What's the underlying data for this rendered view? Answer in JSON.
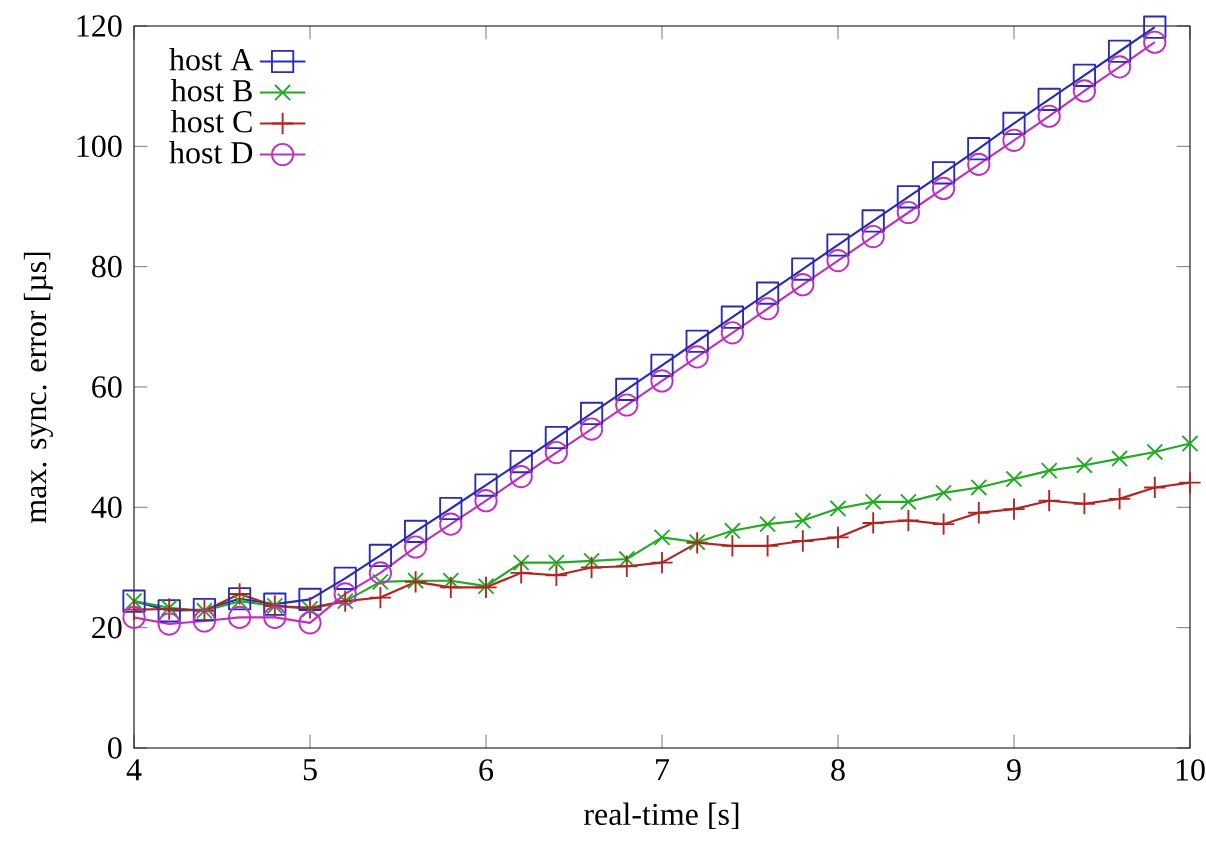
{
  "chart_data": {
    "type": "line",
    "xlabel": "real-time [s]",
    "ylabel": "max. sync. error [µs]",
    "xlim": [
      4,
      10
    ],
    "ylim": [
      0,
      120
    ],
    "xticks": [
      4,
      5,
      6,
      7,
      8,
      9,
      10
    ],
    "yticks": [
      0,
      20,
      40,
      60,
      80,
      100,
      120
    ],
    "grid": false,
    "legend": "top left",
    "line_style": "solid",
    "series": [
      {
        "name": "host A",
        "color": "#2a2ab8",
        "marker": "square",
        "x": [
          4.0,
          4.2,
          4.4,
          4.6,
          4.8,
          5.0,
          5.2,
          5.4,
          5.6,
          5.8,
          6.0,
          6.2,
          6.4,
          6.6,
          6.8,
          7.0,
          7.2,
          7.4,
          7.6,
          7.8,
          8.0,
          8.2,
          8.4,
          8.6,
          8.8,
          9.0,
          9.2,
          9.4,
          9.6,
          9.8
        ],
        "values": [
          24.4,
          22.8,
          23,
          24.8,
          23.9,
          24.7,
          28.2,
          32,
          36,
          39.8,
          43.7,
          47.6,
          51.6,
          55.6,
          59.6,
          63.6,
          67.6,
          71.6,
          75.6,
          79.6,
          83.6,
          87.6,
          91.6,
          95.6,
          99.6,
          103.8,
          107.8,
          111.8,
          115.8,
          119.8
        ]
      },
      {
        "name": "host B",
        "color": "#22aa22",
        "marker": "cross",
        "x": [
          4.0,
          4.2,
          4.4,
          4.6,
          4.8,
          5.0,
          5.2,
          5.4,
          5.6,
          5.8,
          6.0,
          6.2,
          6.4,
          6.6,
          6.8,
          7.0,
          7.2,
          7.4,
          7.6,
          7.8,
          8.0,
          8.2,
          8.4,
          8.6,
          8.8,
          9.0,
          9.2,
          9.4,
          9.6,
          9.8,
          10.0
        ],
        "values": [
          24.4,
          23.3,
          22.8,
          24.4,
          23.6,
          23.1,
          24.4,
          27.6,
          27.8,
          27.8,
          26.9,
          30.8,
          30.8,
          31.1,
          31.4,
          35,
          34.2,
          36.1,
          37.2,
          37.8,
          39.8,
          40.9,
          40.9,
          42.4,
          43.3,
          44.7,
          46.1,
          47,
          48.1,
          49.2,
          50.6
        ]
      },
      {
        "name": "host C",
        "color": "#b02424",
        "marker": "plus",
        "x": [
          4.0,
          4.2,
          4.4,
          4.6,
          4.8,
          5.0,
          5.2,
          5.4,
          5.6,
          5.8,
          6.0,
          6.2,
          6.4,
          6.6,
          6.8,
          7.0,
          7.2,
          7.4,
          7.6,
          7.8,
          8.0,
          8.2,
          8.4,
          8.6,
          8.8,
          9.0,
          9.2,
          9.4,
          9.6,
          9.8,
          10.0
        ],
        "values": [
          23,
          23.1,
          22.8,
          25.6,
          23.6,
          23.3,
          24.4,
          25,
          27.6,
          26.7,
          26.7,
          29.1,
          28.7,
          30,
          30.2,
          30.8,
          34.1,
          33.6,
          33.6,
          34.4,
          35,
          37.4,
          37.8,
          37.2,
          39.1,
          39.7,
          41.1,
          40.6,
          41.4,
          43.3,
          44.1
        ]
      },
      {
        "name": "host D",
        "color": "#c030c0",
        "marker": "circle",
        "x": [
          4.0,
          4.2,
          4.4,
          4.6,
          4.8,
          5.0,
          5.2,
          5.4,
          5.6,
          5.8,
          6.0,
          6.2,
          6.4,
          6.6,
          6.8,
          7.0,
          7.2,
          7.4,
          7.6,
          7.8,
          8.0,
          8.2,
          8.4,
          8.6,
          8.8,
          9.0,
          9.2,
          9.4,
          9.6,
          9.8
        ],
        "values": [
          21.7,
          20.6,
          21.1,
          21.7,
          21.7,
          20.8,
          25.6,
          29.1,
          33.4,
          37.2,
          41.1,
          45.1,
          49.1,
          53,
          57,
          61,
          65,
          69,
          73,
          77,
          81,
          85,
          89,
          93,
          97,
          101,
          105,
          109.2,
          113.2,
          117.3
        ]
      }
    ]
  }
}
